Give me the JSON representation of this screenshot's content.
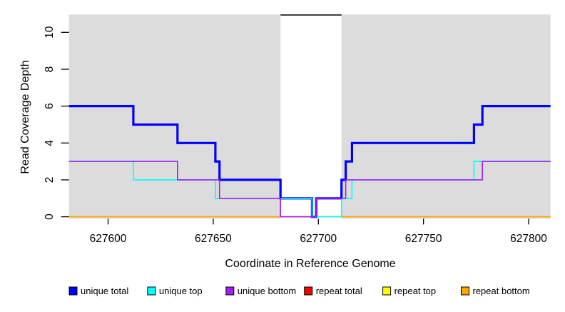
{
  "figure": {
    "xlabel": "Coordinate in Reference Genome",
    "ylabel": "Read Coverage Depth"
  },
  "chart_data": {
    "type": "line",
    "subtype": "step-coverage-plot",
    "title": "",
    "xlabel": "Coordinate in Reference Genome",
    "ylabel": "Read Coverage Depth",
    "x_domain": [
      627581.4,
      627810.4
    ],
    "y_domain": [
      0,
      11
    ],
    "x_ticks": [
      627600,
      627650,
      627700,
      627750,
      627800
    ],
    "y_ticks": [
      0,
      2,
      4,
      6,
      8,
      10
    ],
    "grid": "off",
    "plot_background": "#DCDCDC",
    "gap_region": {
      "start": 627682,
      "end": 627711,
      "fill": "#FFFFFF",
      "cap_line_color": "#000000",
      "cap_line_y": 11
    },
    "series": [
      {
        "name": "repeat total",
        "color": "#FF0000",
        "line_width": 1.5,
        "points": [
          [
            627581.4,
            0
          ],
          [
            627810.4,
            0
          ]
        ]
      },
      {
        "name": "repeat top",
        "color": "#FFFF00",
        "line_width": 1.5,
        "points": [
          [
            627581.4,
            0
          ],
          [
            627810.4,
            0
          ]
        ]
      },
      {
        "name": "repeat bottom",
        "color": "#FFA500",
        "line_width": 1.8,
        "points": [
          [
            627581.4,
            0
          ],
          [
            627810.4,
            0
          ]
        ]
      },
      {
        "name": "unique total",
        "color": "#0000FF",
        "line_width": 3.2,
        "points": [
          [
            627581.4,
            6
          ],
          [
            627612,
            5
          ],
          [
            627633,
            4
          ],
          [
            627651,
            3
          ],
          [
            627653,
            2
          ],
          [
            627682,
            1
          ],
          [
            627697,
            0
          ],
          [
            627699,
            1
          ],
          [
            627711,
            2
          ],
          [
            627713,
            3
          ],
          [
            627716,
            4
          ],
          [
            627774,
            5
          ],
          [
            627778,
            6
          ],
          [
            627810.4,
            6
          ]
        ]
      },
      {
        "name": "unique top",
        "color": "#00FFFF",
        "line_width": 1.6,
        "points": [
          [
            627581.4,
            3
          ],
          [
            627612,
            2
          ],
          [
            627651,
            1
          ],
          [
            627697,
            0
          ],
          [
            627711,
            1
          ],
          [
            627716,
            2
          ],
          [
            627774,
            3
          ],
          [
            627810.4,
            3
          ]
        ]
      },
      {
        "name": "unique bottom",
        "color": "#A020F0",
        "line_width": 1.6,
        "points": [
          [
            627581.4,
            3
          ],
          [
            627633,
            2
          ],
          [
            627653,
            1
          ],
          [
            627682,
            0
          ],
          [
            627699,
            1
          ],
          [
            627713,
            2
          ],
          [
            627778,
            3
          ],
          [
            627810.4,
            3
          ]
        ]
      }
    ],
    "legend": {
      "position": "bottom",
      "items": [
        {
          "label": "unique total",
          "color": "#0000FF"
        },
        {
          "label": "unique top",
          "color": "#00FFFF"
        },
        {
          "label": "unique bottom",
          "color": "#A020F0"
        },
        {
          "label": "repeat total",
          "color": "#FF0000"
        },
        {
          "label": "repeat top",
          "color": "#FFFF00"
        },
        {
          "label": "repeat bottom",
          "color": "#FFA500"
        }
      ]
    }
  }
}
